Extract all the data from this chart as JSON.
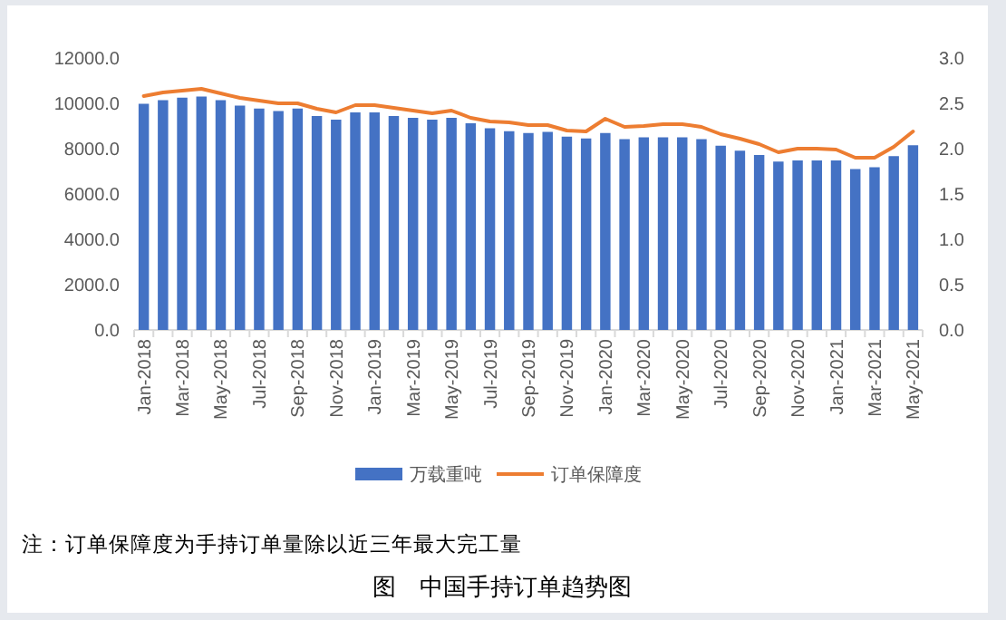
{
  "chart_data": {
    "type": "bar",
    "title": "图　中国手持订单趋势图",
    "annotations": [
      "注：订单保障度为手持订单量除以近三年最大完工量"
    ],
    "categories": [
      "Jan-2018",
      null,
      "Mar-2018",
      null,
      "May-2018",
      null,
      "Jul-2018",
      null,
      "Sep-2018",
      null,
      "Nov-2018",
      null,
      "Jan-2019",
      null,
      "Mar-2019",
      null,
      "May-2019",
      null,
      "Jul-2019",
      null,
      "Sep-2019",
      null,
      "Nov-2019",
      null,
      "Jan-2020",
      null,
      "Mar-2020",
      null,
      "May-2020",
      null,
      "Jul-2020",
      null,
      "Sep-2020",
      null,
      "Nov-2020",
      null,
      "Jan-2021",
      null,
      "Mar-2021",
      null,
      "May-2021"
    ],
    "series": [
      {
        "name": "万载重吨",
        "color": "#4472c4",
        "values": [
          9980,
          10140,
          10250,
          10300,
          10140,
          9900,
          9770,
          9660,
          9770,
          9440,
          9280,
          9600,
          9600,
          9440,
          9360,
          9280,
          9360,
          9120,
          8900,
          8770,
          8690,
          8740,
          8530,
          8450,
          8690,
          8420,
          8500,
          8500,
          8500,
          8420,
          8130,
          7910,
          7720,
          7430,
          7480,
          7480,
          7480,
          7100,
          7180,
          7670,
          8150
        ]
      },
      {
        "name": "订单保障度",
        "type": "line",
        "axis": "y2",
        "color": "#ed7d31",
        "values": [
          2.58,
          2.62,
          2.64,
          2.66,
          2.61,
          2.56,
          2.53,
          2.5,
          2.5,
          2.44,
          2.4,
          2.48,
          2.48,
          2.45,
          2.42,
          2.39,
          2.42,
          2.34,
          2.3,
          2.29,
          2.26,
          2.26,
          2.2,
          2.19,
          2.33,
          2.24,
          2.25,
          2.27,
          2.27,
          2.24,
          2.16,
          2.11,
          2.05,
          1.96,
          2.0,
          2.0,
          1.99,
          1.9,
          1.9,
          2.02,
          2.19
        ]
      }
    ],
    "ylim": [
      0,
      12000
    ],
    "yticks": [
      {
        "value": 0,
        "label": "0.0"
      },
      {
        "value": 2000,
        "label": "2000.0"
      },
      {
        "value": 4000,
        "label": "4000.0"
      },
      {
        "value": 6000,
        "label": "6000.0"
      },
      {
        "value": 8000,
        "label": "8000.0"
      },
      {
        "value": 10000,
        "label": "10000.0"
      },
      {
        "value": 12000,
        "label": "12000.0"
      }
    ],
    "y2lim": [
      0,
      3
    ],
    "y2ticks": [
      {
        "value": 0,
        "label": "0.0"
      },
      {
        "value": 0.5,
        "label": "0.5"
      },
      {
        "value": 1,
        "label": "1.0"
      },
      {
        "value": 1.5,
        "label": "1.5"
      },
      {
        "value": 2,
        "label": "2.0"
      },
      {
        "value": 2.5,
        "label": "2.5"
      },
      {
        "value": 3,
        "label": "3.0"
      }
    ],
    "legend": "bottom"
  }
}
